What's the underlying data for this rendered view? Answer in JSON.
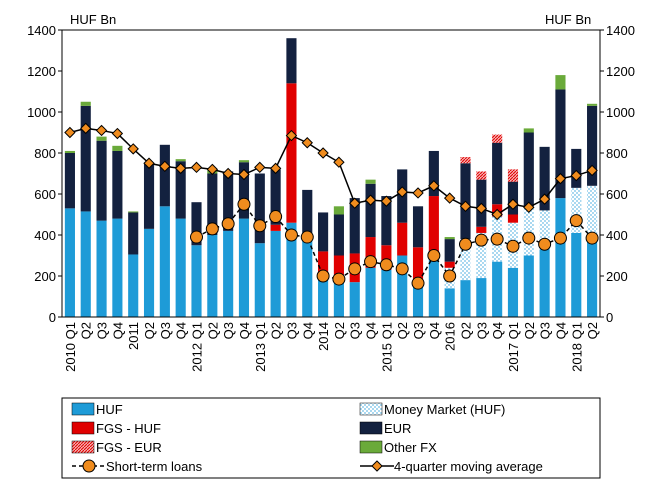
{
  "chart_data": {
    "type": "bar",
    "y_label": "HUF Bn",
    "y2_label": "HUF Bn",
    "categories": [
      "2010 Q1",
      "Q2",
      "Q3",
      "Q4",
      "2011",
      "Q2",
      "Q3",
      "Q4",
      "2012 Q1",
      "Q2",
      "Q3",
      "Q4",
      "2013 Q1",
      "Q2",
      "Q3",
      "Q4",
      "2014",
      "Q2",
      "Q3",
      "Q4",
      "2015 Q1",
      "Q2",
      "Q3",
      "Q4",
      "2016",
      "Q2",
      "Q3",
      "Q4",
      "2017 Q1",
      "Q2",
      "Q3",
      "Q4",
      "2018 Q1",
      "Q2"
    ],
    "ylim": [
      0,
      1400
    ],
    "yticks": [
      0,
      200,
      400,
      600,
      800,
      1000,
      1200,
      1400
    ],
    "y2lim": [
      0,
      1400
    ],
    "y2ticks": [
      0,
      200,
      400,
      600,
      800,
      1000,
      1200,
      1400
    ],
    "series": [
      {
        "name": "HUF",
        "color": "#1e9bd7",
        "values": [
          530,
          515,
          470,
          480,
          305,
          430,
          540,
          480,
          350,
          400,
          420,
          480,
          360,
          420,
          460,
          390,
          200,
          180,
          170,
          240,
          230,
          300,
          150,
          280,
          140,
          180,
          190,
          270,
          240,
          300,
          330,
          580,
          410,
          370
        ]
      },
      {
        "name": "Money Market (HUF)",
        "color": "#9fd3ef",
        "pattern": "dots",
        "values": [
          0,
          0,
          0,
          0,
          0,
          0,
          0,
          0,
          0,
          0,
          0,
          0,
          0,
          0,
          0,
          0,
          0,
          0,
          0,
          0,
          0,
          0,
          0,
          0,
          100,
          200,
          220,
          220,
          220,
          240,
          190,
          0,
          220,
          270
        ]
      },
      {
        "name": "FGS - HUF",
        "color": "#e00000",
        "values": [
          0,
          0,
          0,
          0,
          0,
          0,
          0,
          0,
          0,
          0,
          0,
          0,
          0,
          30,
          680,
          0,
          120,
          120,
          140,
          150,
          120,
          160,
          190,
          310,
          30,
          0,
          30,
          60,
          40,
          0,
          0,
          0,
          0,
          0
        ]
      },
      {
        "name": "EUR",
        "color": "#13213f",
        "values": [
          270,
          515,
          390,
          330,
          205,
          320,
          300,
          280,
          210,
          300,
          290,
          275,
          340,
          270,
          220,
          230,
          190,
          200,
          270,
          260,
          240,
          260,
          200,
          220,
          110,
          370,
          230,
          300,
          160,
          360,
          310,
          530,
          190,
          390
        ]
      },
      {
        "name": "FGS - EUR",
        "color": "#e00000",
        "pattern": "hatch",
        "values": [
          0,
          0,
          0,
          0,
          0,
          0,
          0,
          0,
          0,
          0,
          0,
          0,
          0,
          0,
          0,
          0,
          0,
          0,
          0,
          0,
          0,
          0,
          0,
          0,
          0,
          30,
          40,
          40,
          60,
          0,
          0,
          0,
          0,
          0
        ]
      },
      {
        "name": "Other FX",
        "color": "#6aaa3a",
        "values": [
          10,
          20,
          20,
          25,
          5,
          0,
          0,
          10,
          0,
          15,
          0,
          10,
          0,
          0,
          0,
          0,
          0,
          40,
          0,
          20,
          0,
          0,
          0,
          0,
          10,
          0,
          0,
          0,
          0,
          20,
          0,
          70,
          0,
          10
        ]
      },
      {
        "name": "Short-term loans",
        "type": "line",
        "color": "#f08c1e",
        "marker": "circle",
        "dash": true,
        "values": [
          null,
          null,
          null,
          null,
          null,
          null,
          null,
          null,
          390,
          430,
          455,
          550,
          445,
          490,
          400,
          390,
          200,
          185,
          235,
          270,
          255,
          235,
          165,
          300,
          200,
          355,
          375,
          380,
          345,
          385,
          355,
          385,
          470,
          385
        ]
      },
      {
        "name": "4-quarter moving average",
        "type": "line",
        "color": "#f08c1e",
        "marker": "diamond",
        "values": [
          900,
          920,
          910,
          895,
          820,
          750,
          735,
          725,
          730,
          720,
          700,
          695,
          730,
          725,
          885,
          850,
          800,
          755,
          555,
          570,
          565,
          610,
          605,
          640,
          580,
          540,
          530,
          500,
          550,
          535,
          575,
          675,
          690,
          715
        ]
      }
    ]
  }
}
